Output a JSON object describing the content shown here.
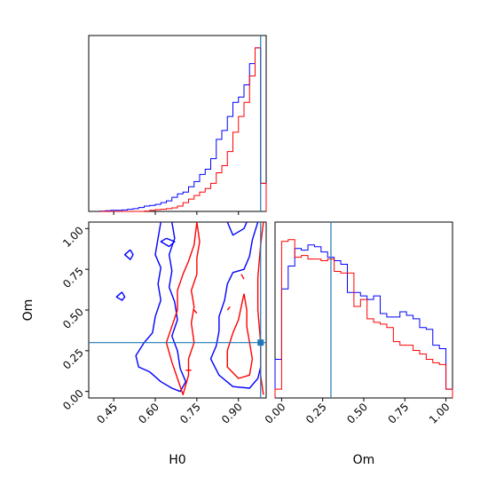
{
  "chart_data": {
    "type": "corner",
    "variables": [
      "H0",
      "Om"
    ],
    "truths": {
      "H0": 0.98,
      "Om": 0.3
    },
    "colors": {
      "series_a": "#0000ff",
      "series_b": "#ff0000",
      "truth": "#1f77b4"
    },
    "panels": [
      {
        "id": "hist_h0",
        "type": "histogram-step",
        "xlim": [
          0.36,
          1.0
        ],
        "x_ticks": [
          0.45,
          0.6,
          0.75,
          0.9
        ],
        "bin_edges": [
          0.4,
          0.42,
          0.44,
          0.46,
          0.48,
          0.5,
          0.52,
          0.54,
          0.56,
          0.58,
          0.6,
          0.62,
          0.64,
          0.66,
          0.68,
          0.7,
          0.72,
          0.74,
          0.76,
          0.78,
          0.8,
          0.82,
          0.84,
          0.86,
          0.88,
          0.9,
          0.92,
          0.94,
          0.96,
          0.98,
          1.0
        ],
        "series": [
          {
            "color_key": "series_a",
            "values": [
              0.002,
              0.004,
              0.006,
              0.006,
              0.008,
              0.012,
              0.016,
              0.022,
              0.03,
              0.034,
              0.04,
              0.05,
              0.06,
              0.08,
              0.1,
              0.11,
              0.14,
              0.17,
              0.21,
              0.24,
              0.3,
              0.41,
              0.46,
              0.54,
              0.62,
              0.65,
              0.72,
              0.84,
              0.93,
              0.16
            ]
          },
          {
            "color_key": "series_b",
            "values": [
              0,
              0,
              0,
              0,
              0,
              0,
              0,
              0,
              0.002,
              0.006,
              0.01,
              0.012,
              0.016,
              0.02,
              0.03,
              0.05,
              0.07,
              0.09,
              0.11,
              0.13,
              0.16,
              0.22,
              0.26,
              0.34,
              0.45,
              0.54,
              0.62,
              0.77,
              0.93,
              0.16
            ]
          }
        ]
      },
      {
        "id": "contour_h0_om",
        "type": "contour",
        "xlim": [
          0.36,
          1.0
        ],
        "ylim": [
          -0.04,
          1.04
        ],
        "x_ticks": [
          0.45,
          0.6,
          0.75,
          0.9
        ],
        "y_ticks": [
          0.0,
          0.25,
          0.5,
          0.75,
          1.0
        ],
        "series": [
          {
            "color_key": "series_a",
            "paths": [
              [
                [
                  0.62,
                  1.04
                ],
                [
                  0.61,
                  0.94
                ],
                [
                  0.6,
                  0.84
                ],
                [
                  0.62,
                  0.76
                ],
                [
                  0.61,
                  0.66
                ],
                [
                  0.62,
                  0.56
                ],
                [
                  0.6,
                  0.46
                ],
                [
                  0.59,
                  0.36
                ],
                [
                  0.56,
                  0.3
                ],
                [
                  0.53,
                  0.22
                ],
                [
                  0.54,
                  0.15
                ],
                [
                  0.58,
                  0.12
                ],
                [
                  0.62,
                  0.06
                ],
                [
                  0.66,
                  0.02
                ],
                [
                  0.69,
                  0.0
                ],
                [
                  0.71,
                  0.06
                ],
                [
                  0.69,
                  0.14
                ],
                [
                  0.68,
                  0.25
                ],
                [
                  0.66,
                  0.34
                ],
                [
                  0.68,
                  0.44
                ],
                [
                  0.67,
                  0.55
                ],
                [
                  0.65,
                  0.64
                ],
                [
                  0.66,
                  0.74
                ],
                [
                  0.65,
                  0.84
                ],
                [
                  0.67,
                  0.94
                ],
                [
                  0.66,
                  1.04
                ]
              ],
              [
                [
                  0.86,
                  1.04
                ],
                [
                  0.88,
                  0.96
                ],
                [
                  0.92,
                  1.0
                ],
                [
                  0.93,
                  1.04
                ]
              ],
              [
                [
                  0.97,
                  1.04
                ],
                [
                  0.95,
                  0.93
                ],
                [
                  0.94,
                  0.83
                ],
                [
                  0.92,
                  0.75
                ],
                [
                  0.88,
                  0.73
                ],
                [
                  0.86,
                  0.66
                ],
                [
                  0.85,
                  0.56
                ],
                [
                  0.83,
                  0.46
                ],
                [
                  0.83,
                  0.37
                ],
                [
                  0.82,
                  0.28
                ],
                [
                  0.8,
                  0.2
                ],
                [
                  0.83,
                  0.1
                ],
                [
                  0.88,
                  0.03
                ],
                [
                  0.94,
                  0.02
                ],
                [
                  0.97,
                  0.08
                ],
                [
                  0.98,
                  0.15
                ]
              ],
              [
                [
                  0.64,
                  0.94
                ],
                [
                  0.67,
                  0.92
                ],
                [
                  0.65,
                  0.89
                ],
                [
                  0.62,
                  0.92
                ],
                [
                  0.64,
                  0.94
                ]
              ],
              [
                [
                  0.51,
                  0.87
                ],
                [
                  0.52,
                  0.84
                ],
                [
                  0.51,
                  0.81
                ],
                [
                  0.49,
                  0.84
                ],
                [
                  0.51,
                  0.87
                ]
              ],
              [
                [
                  0.48,
                  0.61
                ],
                [
                  0.49,
                  0.58
                ],
                [
                  0.48,
                  0.56
                ],
                [
                  0.46,
                  0.58
                ],
                [
                  0.48,
                  0.61
                ]
              ]
            ]
          },
          {
            "color_key": "series_b",
            "paths": [
              [
                [
                  0.75,
                  1.04
                ],
                [
                  0.74,
                  0.9
                ],
                [
                  0.72,
                  0.8
                ],
                [
                  0.7,
                  0.72
                ],
                [
                  0.68,
                  0.62
                ],
                [
                  0.68,
                  0.5
                ],
                [
                  0.66,
                  0.4
                ],
                [
                  0.64,
                  0.3
                ],
                [
                  0.66,
                  0.18
                ],
                [
                  0.68,
                  0.08
                ],
                [
                  0.7,
                  -0.02
                ],
                [
                  0.72,
                  0.1
                ],
                [
                  0.72,
                  0.2
                ],
                [
                  0.74,
                  0.3
                ],
                [
                  0.73,
                  0.42
                ],
                [
                  0.74,
                  0.52
                ],
                [
                  0.73,
                  0.62
                ],
                [
                  0.75,
                  0.72
                ],
                [
                  0.75,
                  0.82
                ],
                [
                  0.76,
                  0.92
                ],
                [
                  0.75,
                  1.04
                ]
              ],
              [
                [
                  0.92,
                  0.6
                ],
                [
                  0.91,
                  0.52
                ],
                [
                  0.9,
                  0.44
                ],
                [
                  0.88,
                  0.36
                ],
                [
                  0.86,
                  0.25
                ],
                [
                  0.86,
                  0.15
                ],
                [
                  0.9,
                  0.08
                ],
                [
                  0.94,
                  0.1
                ],
                [
                  0.95,
                  0.2
                ],
                [
                  0.94,
                  0.3
                ],
                [
                  0.93,
                  0.4
                ],
                [
                  0.93,
                  0.5
                ],
                [
                  0.92,
                  0.6
                ]
              ],
              [
                [
                  0.99,
                  1.04
                ],
                [
                  0.98,
                  0.9
                ],
                [
                  0.97,
                  0.7
                ],
                [
                  0.97,
                  0.5
                ],
                [
                  0.98,
                  0.3
                ],
                [
                  0.98,
                  0.1
                ],
                [
                  0.99,
                  -0.02
                ]
              ],
              [
                [
                  0.71,
                  0.13
                ],
                [
                  0.73,
                  0.13
                ]
              ],
              [
                [
                  0.74,
                  0.5
                ],
                [
                  0.75,
                  0.48
                ]
              ],
              [
                [
                  0.86,
                  0.5
                ],
                [
                  0.87,
                  0.52
                ]
              ],
              [
                [
                  0.91,
                  0.72
                ],
                [
                  0.92,
                  0.69
                ]
              ]
            ]
          }
        ],
        "points": [
          {
            "x": 0.98,
            "y": 0.3,
            "color_key": "truth"
          }
        ]
      },
      {
        "id": "hist_om",
        "type": "histogram-step",
        "xlim": [
          -0.04,
          1.04
        ],
        "x_ticks": [
          0.0,
          0.25,
          0.5,
          0.75,
          1.0
        ],
        "bin_edges": [
          -0.04,
          0.0,
          0.04,
          0.08,
          0.12,
          0.16,
          0.2,
          0.24,
          0.28,
          0.32,
          0.36,
          0.4,
          0.44,
          0.48,
          0.52,
          0.56,
          0.6,
          0.64,
          0.68,
          0.72,
          0.76,
          0.8,
          0.84,
          0.88,
          0.92,
          0.96,
          1.0,
          1.04
        ],
        "series": [
          {
            "color_key": "series_a",
            "values": [
              0.22,
              0.62,
              0.75,
              0.85,
              0.84,
              0.87,
              0.86,
              0.83,
              0.8,
              0.78,
              0.76,
              0.6,
              0.6,
              0.58,
              0.56,
              0.58,
              0.48,
              0.46,
              0.46,
              0.49,
              0.47,
              0.45,
              0.4,
              0.39,
              0.3,
              0.28,
              0.05
            ]
          },
          {
            "color_key": "series_b",
            "values": [
              0.05,
              0.89,
              0.9,
              0.8,
              0.81,
              0.79,
              0.79,
              0.78,
              0.79,
              0.72,
              0.71,
              0.71,
              0.52,
              0.56,
              0.45,
              0.43,
              0.42,
              0.4,
              0.32,
              0.3,
              0.3,
              0.27,
              0.25,
              0.22,
              0.2,
              0.19,
              0.05
            ]
          }
        ]
      }
    ]
  }
}
